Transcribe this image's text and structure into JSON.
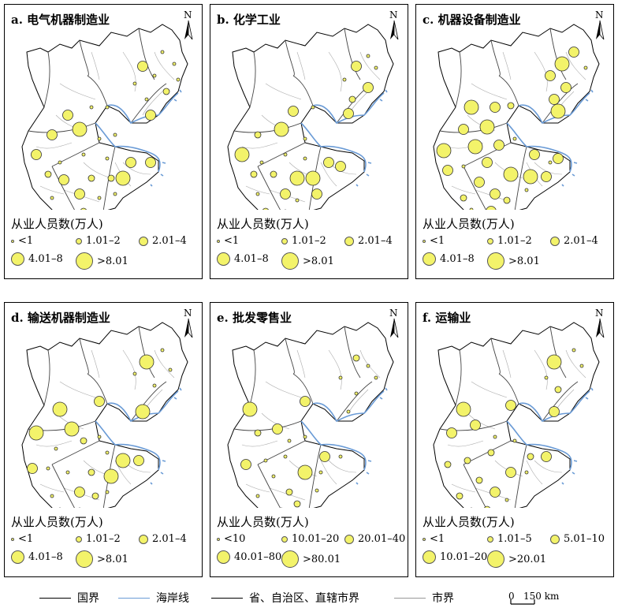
{
  "panels": [
    {
      "title": "a. 电气机器制造业",
      "legend_title": "从业人员数(万人)",
      "classes": [
        "<1",
        "1.01–2",
        "2.01–4",
        "4.01–8",
        ">8.01"
      ],
      "points": [
        [
          200,
          60,
          1
        ],
        [
          215,
          75,
          1
        ],
        [
          190,
          90,
          1
        ],
        [
          175,
          78,
          3
        ],
        [
          165,
          100,
          1
        ],
        [
          205,
          110,
          2
        ],
        [
          220,
          95,
          1
        ],
        [
          180,
          120,
          1
        ],
        [
          185,
          140,
          3
        ],
        [
          130,
          130,
          1
        ],
        [
          110,
          130,
          1
        ],
        [
          80,
          140,
          3
        ],
        [
          95,
          158,
          4
        ],
        [
          60,
          165,
          3
        ],
        [
          120,
          170,
          1
        ],
        [
          140,
          165,
          1
        ],
        [
          40,
          190,
          3
        ],
        [
          70,
          200,
          1
        ],
        [
          100,
          190,
          1
        ],
        [
          130,
          195,
          1
        ],
        [
          160,
          200,
          3
        ],
        [
          185,
          200,
          3
        ],
        [
          55,
          215,
          2
        ],
        [
          75,
          222,
          3
        ],
        [
          110,
          220,
          2
        ],
        [
          135,
          220,
          2
        ],
        [
          150,
          220,
          4
        ],
        [
          95,
          240,
          3
        ],
        [
          120,
          245,
          1
        ],
        [
          60,
          245,
          1
        ],
        [
          100,
          262,
          2
        ],
        [
          75,
          265,
          1
        ],
        [
          140,
          240,
          1
        ]
      ]
    },
    {
      "title": "b. 化学工业",
      "legend_title": "从业人员数(万人)",
      "classes": [
        "<1",
        "1.01–2",
        "2.01–4",
        "4.01–8",
        ">8.01"
      ],
      "points": [
        [
          200,
          65,
          1
        ],
        [
          210,
          80,
          1
        ],
        [
          185,
          78,
          3
        ],
        [
          170,
          95,
          1
        ],
        [
          200,
          105,
          3
        ],
        [
          180,
          120,
          2
        ],
        [
          175,
          138,
          3
        ],
        [
          130,
          130,
          1
        ],
        [
          105,
          135,
          3
        ],
        [
          90,
          158,
          4
        ],
        [
          60,
          165,
          2
        ],
        [
          40,
          190,
          4
        ],
        [
          65,
          200,
          1
        ],
        [
          95,
          190,
          1
        ],
        [
          120,
          195,
          1
        ],
        [
          150,
          200,
          3
        ],
        [
          165,
          205,
          3
        ],
        [
          55,
          215,
          2
        ],
        [
          80,
          215,
          2
        ],
        [
          110,
          220,
          4
        ],
        [
          130,
          220,
          4
        ],
        [
          95,
          240,
          3
        ],
        [
          110,
          248,
          1
        ],
        [
          60,
          240,
          1
        ],
        [
          95,
          262,
          1
        ],
        [
          70,
          262,
          2
        ],
        [
          135,
          240,
          3
        ],
        [
          120,
          170,
          1
        ]
      ]
    },
    {
      "title": "c. 机器设备制造业",
      "legend_title": "从业人员数(万人)",
      "classes": [
        "<1",
        "1.01–2",
        "2.01–4",
        "4.01–8",
        ">8.01"
      ],
      "points": [
        [
          200,
          60,
          3
        ],
        [
          185,
          75,
          4
        ],
        [
          215,
          80,
          1
        ],
        [
          170,
          90,
          3
        ],
        [
          190,
          105,
          3
        ],
        [
          175,
          120,
          3
        ],
        [
          180,
          135,
          4
        ],
        [
          120,
          128,
          2
        ],
        [
          100,
          130,
          3
        ],
        [
          70,
          130,
          4
        ],
        [
          90,
          155,
          4
        ],
        [
          60,
          158,
          3
        ],
        [
          35,
          185,
          4
        ],
        [
          75,
          180,
          4
        ],
        [
          105,
          178,
          3
        ],
        [
          125,
          170,
          1
        ],
        [
          150,
          190,
          3
        ],
        [
          170,
          200,
          1
        ],
        [
          180,
          195,
          3
        ],
        [
          40,
          210,
          3
        ],
        [
          60,
          205,
          1
        ],
        [
          90,
          200,
          3
        ],
        [
          120,
          215,
          4
        ],
        [
          145,
          218,
          4
        ],
        [
          165,
          218,
          3
        ],
        [
          80,
          225,
          3
        ],
        [
          100,
          240,
          3
        ],
        [
          60,
          245,
          2
        ],
        [
          115,
          248,
          2
        ],
        [
          95,
          262,
          3
        ],
        [
          70,
          260,
          1
        ],
        [
          140,
          235,
          1
        ]
      ]
    },
    {
      "title": "d. 输送机器制造业",
      "legend_title": "从业人员数(万人)",
      "classes": [
        "<1",
        "1.01–2",
        "2.01–4",
        "4.01–8",
        ">8.01"
      ],
      "points": [
        [
          180,
          75,
          4
        ],
        [
          200,
          60,
          1
        ],
        [
          210,
          85,
          1
        ],
        [
          165,
          90,
          1
        ],
        [
          190,
          105,
          1
        ],
        [
          175,
          138,
          4
        ],
        [
          120,
          125,
          3
        ],
        [
          70,
          135,
          4
        ],
        [
          40,
          165,
          4
        ],
        [
          85,
          160,
          4
        ],
        [
          100,
          175,
          2
        ],
        [
          120,
          170,
          1
        ],
        [
          130,
          190,
          1
        ],
        [
          150,
          200,
          4
        ],
        [
          170,
          200,
          3
        ],
        [
          65,
          185,
          1
        ],
        [
          35,
          210,
          3
        ],
        [
          55,
          210,
          1
        ],
        [
          80,
          215,
          1
        ],
        [
          110,
          215,
          2
        ],
        [
          135,
          220,
          4
        ],
        [
          95,
          240,
          3
        ],
        [
          115,
          245,
          2
        ],
        [
          60,
          245,
          1
        ],
        [
          95,
          262,
          1
        ],
        [
          70,
          262,
          1
        ],
        [
          130,
          240,
          1
        ]
      ]
    },
    {
      "title": "e. 批发零售业",
      "legend_title": "从业人员数(万人)",
      "classes": [
        "<10",
        "10.01–20",
        "20.01–40",
        "40.01–80",
        ">80.01"
      ],
      "points": [
        [
          185,
          70,
          2
        ],
        [
          200,
          80,
          1
        ],
        [
          210,
          95,
          1
        ],
        [
          165,
          95,
          1
        ],
        [
          185,
          115,
          1
        ],
        [
          175,
          138,
          1
        ],
        [
          120,
          125,
          3
        ],
        [
          50,
          135,
          4
        ],
        [
          85,
          160,
          3
        ],
        [
          60,
          165,
          2
        ],
        [
          100,
          175,
          1
        ],
        [
          120,
          170,
          1
        ],
        [
          145,
          195,
          3
        ],
        [
          165,
          195,
          1
        ],
        [
          45,
          205,
          3
        ],
        [
          70,
          200,
          1
        ],
        [
          95,
          195,
          1
        ],
        [
          120,
          215,
          4
        ],
        [
          140,
          215,
          1
        ],
        [
          80,
          220,
          1
        ],
        [
          100,
          240,
          2
        ],
        [
          60,
          245,
          1
        ],
        [
          110,
          255,
          2
        ],
        [
          90,
          262,
          1
        ],
        [
          135,
          238,
          1
        ]
      ]
    },
    {
      "title": "f. 运输业",
      "legend_title": "从业人员数(万人)",
      "classes": [
        "<1",
        "1.01–5",
        "5.01–10",
        "10.01–20",
        ">20.01"
      ],
      "points": [
        [
          175,
          75,
          4
        ],
        [
          200,
          60,
          1
        ],
        [
          210,
          80,
          1
        ],
        [
          165,
          95,
          1
        ],
        [
          180,
          110,
          2
        ],
        [
          175,
          138,
          3
        ],
        [
          120,
          130,
          3
        ],
        [
          60,
          135,
          4
        ],
        [
          75,
          155,
          3
        ],
        [
          45,
          165,
          3
        ],
        [
          100,
          170,
          1
        ],
        [
          125,
          175,
          1
        ],
        [
          145,
          195,
          2
        ],
        [
          165,
          195,
          3
        ],
        [
          40,
          205,
          2
        ],
        [
          65,
          200,
          2
        ],
        [
          95,
          190,
          2
        ],
        [
          120,
          215,
          3
        ],
        [
          140,
          215,
          1
        ],
        [
          80,
          225,
          2
        ],
        [
          100,
          240,
          3
        ],
        [
          55,
          245,
          2
        ],
        [
          115,
          250,
          1
        ],
        [
          90,
          262,
          2
        ],
        [
          70,
          262,
          1
        ]
      ]
    }
  ],
  "bottom_legend": {
    "country": "国界",
    "coast": "海岸线",
    "province": "省、自治区、直辖市界",
    "city": "市界",
    "scale_zero": "0",
    "scale_value": "150 km"
  },
  "colors": {
    "fill": "#f3f36a",
    "coast": "#6a9bd6",
    "boundary": "#777777",
    "country": "#000000"
  }
}
